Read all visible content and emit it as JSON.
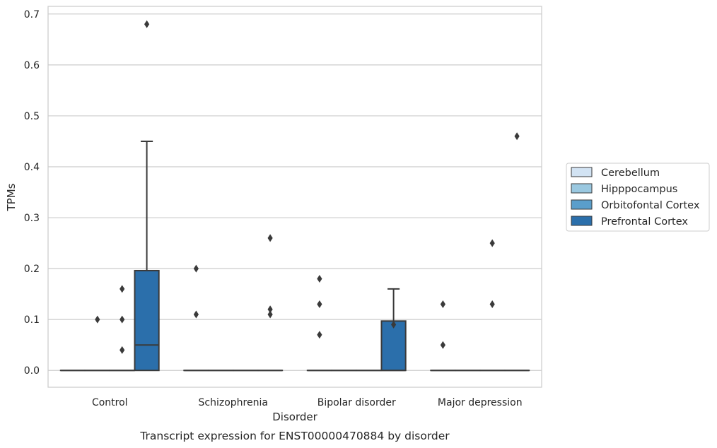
{
  "chart_data": {
    "type": "boxplot",
    "title": "",
    "caption": "Transcript expression for ENST00000470884 by disorder",
    "xlabel": "Disorder",
    "ylabel": "TPMs",
    "ylim": [
      -0.033,
      0.715
    ],
    "yticks": [
      0.0,
      0.1,
      0.2,
      0.3,
      0.4,
      0.5,
      0.6,
      0.7
    ],
    "ytick_labels": [
      "0.0",
      "0.1",
      "0.2",
      "0.3",
      "0.4",
      "0.5",
      "0.6",
      "0.7"
    ],
    "grid": "horizontal",
    "legend_placement": "right, outside plot",
    "categories": [
      "Control",
      "Schizophrenia",
      "Bipolar disorder",
      "Major depression"
    ],
    "series": [
      {
        "name": "Cerebellum",
        "color": "#d2e3f3",
        "boxes": [
          {
            "q1": 0,
            "median": 0,
            "q3": 0,
            "whisker_low": 0,
            "whisker_high": 0,
            "outliers": []
          },
          {
            "q1": 0,
            "median": 0,
            "q3": 0,
            "whisker_low": 0,
            "whisker_high": 0,
            "outliers": [
              0.2,
              0.11
            ]
          },
          {
            "q1": 0,
            "median": 0,
            "q3": 0,
            "whisker_low": 0,
            "whisker_high": 0,
            "outliers": [
              0.18,
              0.13,
              0.07
            ]
          },
          {
            "q1": 0,
            "median": 0,
            "q3": 0,
            "whisker_low": 0,
            "whisker_high": 0,
            "outliers": [
              0.13,
              0.05
            ]
          }
        ]
      },
      {
        "name": "Hipppocampus",
        "color": "#9ac8e0",
        "boxes": [
          {
            "q1": 0,
            "median": 0,
            "q3": 0,
            "whisker_low": 0,
            "whisker_high": 0,
            "outliers": [
              0.1
            ]
          },
          {
            "q1": 0,
            "median": 0,
            "q3": 0,
            "whisker_low": 0,
            "whisker_high": 0,
            "outliers": []
          },
          {
            "q1": 0,
            "median": 0,
            "q3": 0,
            "whisker_low": 0,
            "whisker_high": 0,
            "outliers": []
          },
          {
            "q1": 0,
            "median": 0,
            "q3": 0,
            "whisker_low": 0,
            "whisker_high": 0,
            "outliers": []
          }
        ]
      },
      {
        "name": "Orbitofontal Cortex",
        "color": "#5a9ecb",
        "boxes": [
          {
            "q1": 0,
            "median": 0,
            "q3": 0,
            "whisker_low": 0,
            "whisker_high": 0,
            "outliers": [
              0.16,
              0.1,
              0.04
            ]
          },
          {
            "q1": 0,
            "median": 0,
            "q3": 0,
            "whisker_low": 0,
            "whisker_high": 0,
            "outliers": []
          },
          {
            "q1": 0,
            "median": 0,
            "q3": 0,
            "whisker_low": 0,
            "whisker_high": 0,
            "outliers": []
          },
          {
            "q1": 0,
            "median": 0,
            "q3": 0,
            "whisker_low": 0,
            "whisker_high": 0,
            "outliers": [
              0.25,
              0.13
            ]
          }
        ]
      },
      {
        "name": "Prefrontal Cortex",
        "color": "#2b6fab",
        "boxes": [
          {
            "q1": 0,
            "median": 0.05,
            "q3": 0.196,
            "whisker_low": 0,
            "whisker_high": 0.45,
            "outliers": [
              0.68
            ]
          },
          {
            "q1": 0,
            "median": 0,
            "q3": 0,
            "whisker_low": 0,
            "whisker_high": 0,
            "outliers": [
              0.26,
              0.12,
              0.11
            ]
          },
          {
            "q1": 0,
            "median": 0,
            "q3": 0.097,
            "whisker_low": 0,
            "whisker_high": 0.16,
            "outliers": [
              0.09
            ]
          },
          {
            "q1": 0,
            "median": 0,
            "q3": 0,
            "whisker_low": 0,
            "whisker_high": 0,
            "outliers": [
              0.46
            ]
          }
        ]
      }
    ]
  }
}
